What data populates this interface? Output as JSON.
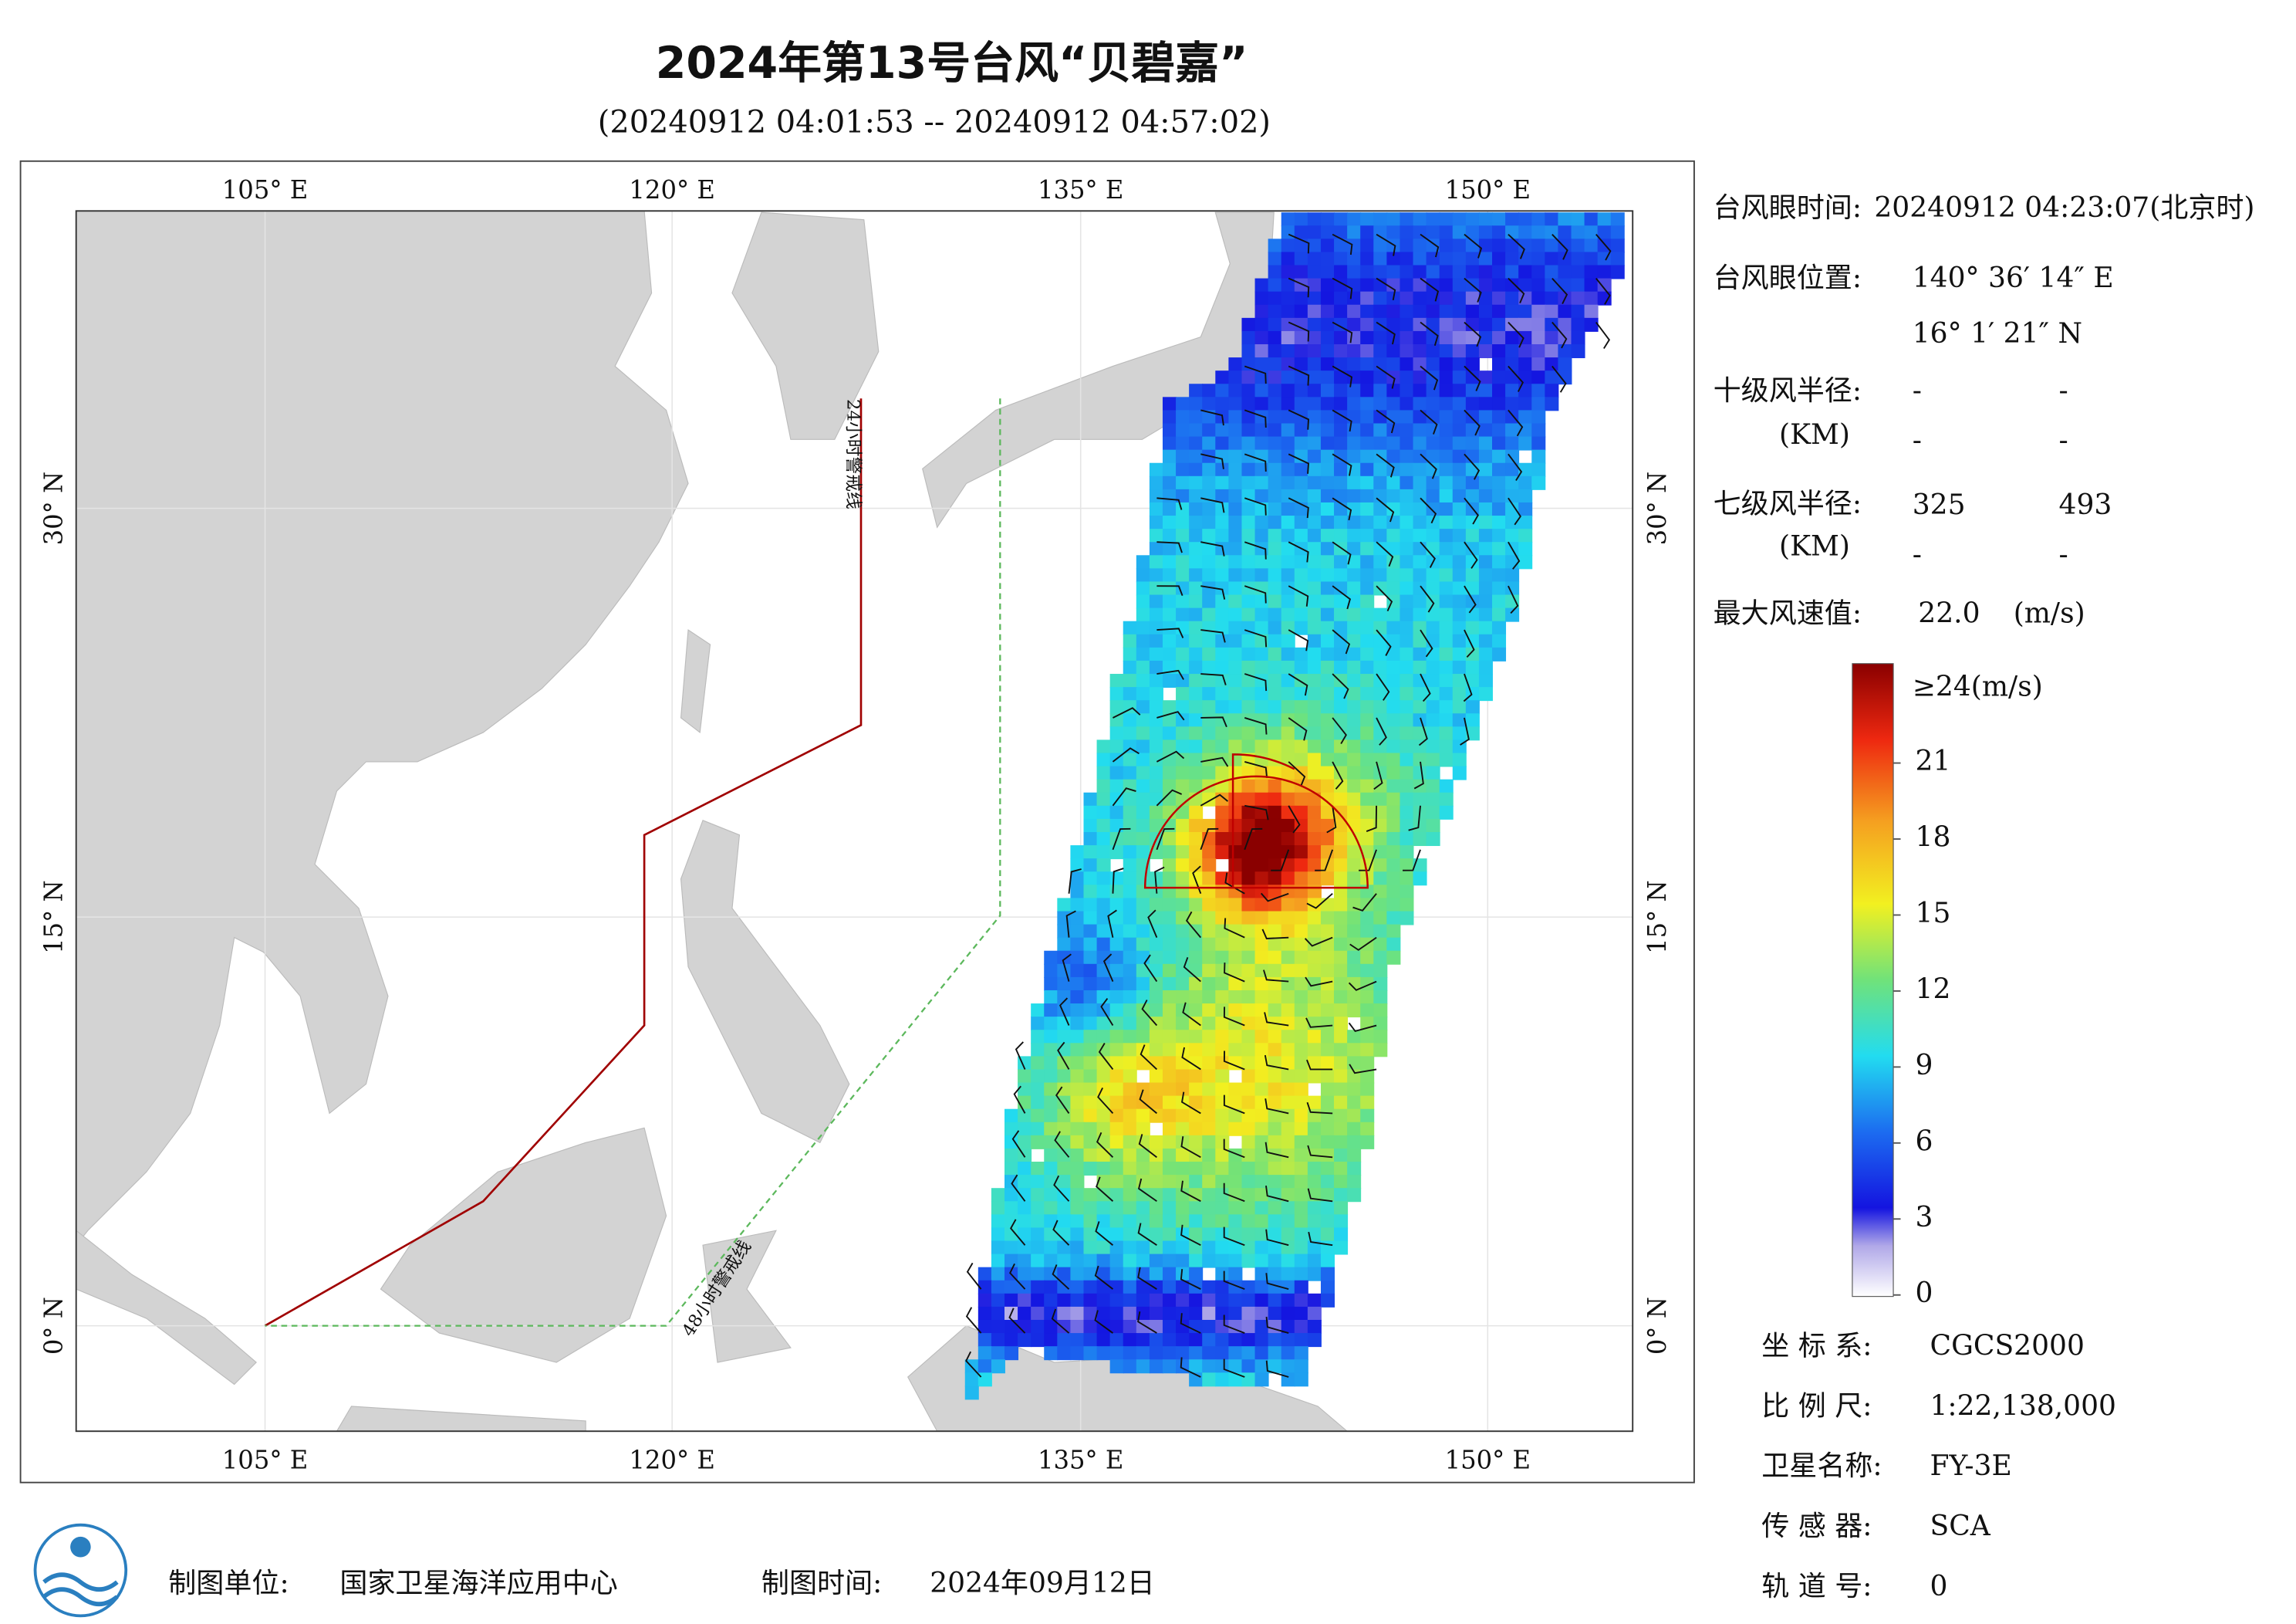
{
  "title": "2024年第13号台风“贝碧嘉”",
  "subtitle": "(20240912 04:01:53 -- 20240912 04:57:02)",
  "map": {
    "lon_labels": [
      "105° E",
      "120° E",
      "135° E",
      "150° E"
    ],
    "lat_labels": [
      "30° N",
      "15° N",
      "0° N"
    ],
    "warning_lines": [
      "24小时警戒线",
      "48小时警戒线"
    ]
  },
  "info": {
    "eye_time": {
      "label": "台风眼时间:",
      "value": "20240912 04:23:07(北京时)"
    },
    "eye_position": {
      "label": "台风眼位置:",
      "lon": "140° 36′ 14″ E",
      "lat": "16° 1′ 21″ N"
    },
    "r10": {
      "label": "十级风半径:",
      "unit": "(KM)",
      "values": [
        "-",
        "-",
        "-",
        "-"
      ]
    },
    "r7": {
      "label": "七级风半径:",
      "unit": "(KM)",
      "values": [
        "325",
        "493",
        "-",
        "-"
      ]
    },
    "max_wind": {
      "label": "最大风速值:",
      "value": "22.0",
      "unit": "(m/s)"
    }
  },
  "colorbar": {
    "top_label": "≥24(m/s)",
    "range": [
      0,
      24
    ],
    "ticks": [
      21,
      18,
      15,
      12,
      9,
      6,
      3,
      0
    ]
  },
  "meta": [
    {
      "label": "坐 标 系:",
      "value": "CGCS2000"
    },
    {
      "label": "比 例 尺:",
      "value": "1:22,138,000"
    },
    {
      "label": "卫星名称:",
      "value": "FY-3E"
    },
    {
      "label": "传 感 器:",
      "value": "SCA"
    },
    {
      "label": "轨 道 号:",
      "value": "0"
    }
  ],
  "footer": {
    "producer_label": "制图单位:",
    "producer": "国家卫星海洋应用中心",
    "time_label": "制图时间:",
    "time": "2024年09月12日"
  }
}
